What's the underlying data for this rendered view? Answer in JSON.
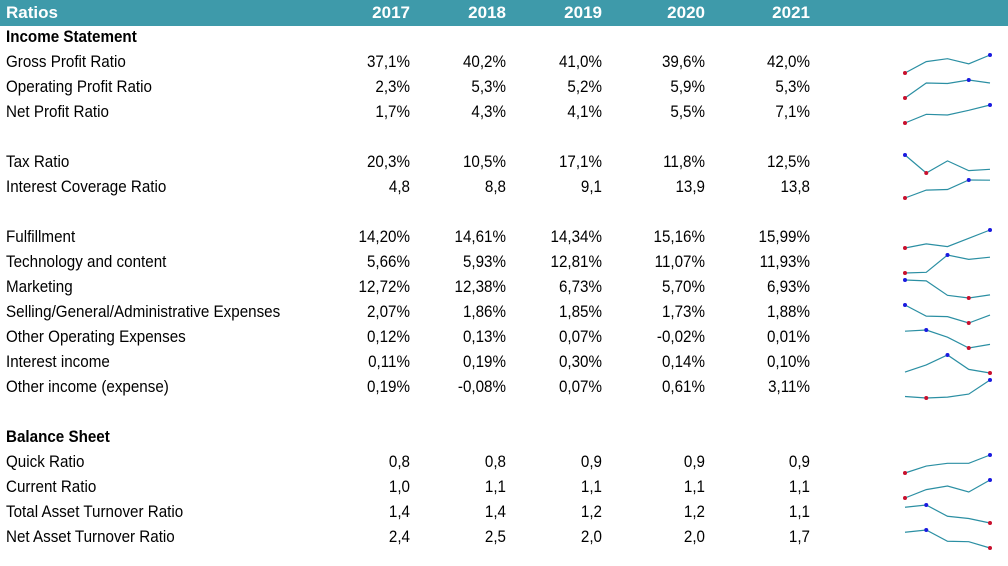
{
  "header": {
    "title": "Ratios",
    "years": [
      "2017",
      "2018",
      "2019",
      "2020",
      "2021"
    ],
    "color": "#3e9aaa"
  },
  "colors": {
    "line": "#2b8fa3",
    "high": "#1a1adf",
    "low": "#c8102e"
  },
  "sections": [
    {
      "id": "income",
      "title": "Income Statement",
      "rows": [
        {
          "label": "Gross Profit Ratio",
          "values": [
            "37,1%",
            "40,2%",
            "41,0%",
            "39,6%",
            "42,0%"
          ],
          "numeric": [
            37.1,
            40.2,
            41.0,
            39.6,
            42.0
          ]
        },
        {
          "label": "Operating Profit Ratio",
          "values": [
            "2,3%",
            "5,3%",
            "5,2%",
            "5,9%",
            "5,3%"
          ],
          "numeric": [
            2.3,
            5.3,
            5.2,
            5.9,
            5.3
          ]
        },
        {
          "label": "Net Profit Ratio",
          "values": [
            "1,7%",
            "4,3%",
            "4,1%",
            "5,5%",
            "7,1%"
          ],
          "numeric": [
            1.7,
            4.3,
            4.1,
            5.5,
            7.1
          ]
        }
      ]
    },
    {
      "id": "tax",
      "title": "",
      "rows": [
        {
          "label": "Tax Ratio",
          "values": [
            "20,3%",
            "10,5%",
            "17,1%",
            "11,8%",
            "12,5%"
          ],
          "numeric": [
            20.3,
            10.5,
            17.1,
            11.8,
            12.5
          ]
        },
        {
          "label": "Interest Coverage Ratio",
          "values": [
            "4,8",
            "8,8",
            "9,1",
            "13,9",
            "13,8"
          ],
          "numeric": [
            4.8,
            8.8,
            9.1,
            13.9,
            13.8
          ]
        }
      ]
    },
    {
      "id": "expenses",
      "title": "",
      "rows": [
        {
          "label": "Fulfillment",
          "values": [
            "14,20%",
            "14,61%",
            "14,34%",
            "15,16%",
            "15,99%"
          ],
          "numeric": [
            14.2,
            14.61,
            14.34,
            15.16,
            15.99
          ]
        },
        {
          "label": "Technology and content",
          "values": [
            "5,66%",
            "5,93%",
            "12,81%",
            "11,07%",
            "11,93%"
          ],
          "numeric": [
            5.66,
            5.93,
            12.81,
            11.07,
            11.93
          ]
        },
        {
          "label": "Marketing",
          "values": [
            "12,72%",
            "12,38%",
            "6,73%",
            "5,70%",
            "6,93%"
          ],
          "numeric": [
            12.72,
            12.38,
            6.73,
            5.7,
            6.93
          ]
        },
        {
          "label": "Selling/General/Administrative Expenses",
          "values": [
            "2,07%",
            "1,86%",
            "1,85%",
            "1,73%",
            "1,88%"
          ],
          "numeric": [
            2.07,
            1.86,
            1.85,
            1.73,
            1.88
          ]
        },
        {
          "label": "Other Operating Expenses",
          "values": [
            "0,12%",
            "0,13%",
            "0,07%",
            "-0,02%",
            "0,01%"
          ],
          "numeric": [
            0.12,
            0.13,
            0.07,
            -0.02,
            0.01
          ]
        },
        {
          "label": "Interest income",
          "values": [
            "0,11%",
            "0,19%",
            "0,30%",
            "0,14%",
            "0,10%"
          ],
          "numeric": [
            0.11,
            0.19,
            0.3,
            0.14,
            0.1
          ]
        },
        {
          "label": "Other income (expense)",
          "values": [
            "0,19%",
            "-0,08%",
            "0,07%",
            "0,61%",
            "3,11%"
          ],
          "numeric": [
            0.19,
            -0.08,
            0.07,
            0.61,
            3.11
          ]
        }
      ]
    },
    {
      "id": "balance",
      "title": "Balance Sheet",
      "rows": [
        {
          "label": "Quick Ratio",
          "values": [
            "0,8",
            "0,8",
            "0,9",
            "0,9",
            "0,9"
          ],
          "numeric": [
            0.8,
            0.85,
            0.87,
            0.87,
            0.93
          ]
        },
        {
          "label": "Current Ratio",
          "values": [
            "1,0",
            "1,1",
            "1,1",
            "1,1",
            "1,1"
          ],
          "numeric": [
            1.0,
            1.07,
            1.1,
            1.05,
            1.15
          ]
        },
        {
          "label": "Total Asset Turnover Ratio",
          "values": [
            "1,4",
            "1,4",
            "1,2",
            "1,2",
            "1,1"
          ],
          "numeric": [
            1.38,
            1.42,
            1.22,
            1.18,
            1.1
          ]
        },
        {
          "label": "Net Asset Turnover Ratio",
          "values": [
            "2,4",
            "2,5",
            "2,0",
            "2,0",
            "1,7"
          ],
          "numeric": [
            2.4,
            2.5,
            2.0,
            1.98,
            1.7
          ]
        }
      ]
    }
  ]
}
